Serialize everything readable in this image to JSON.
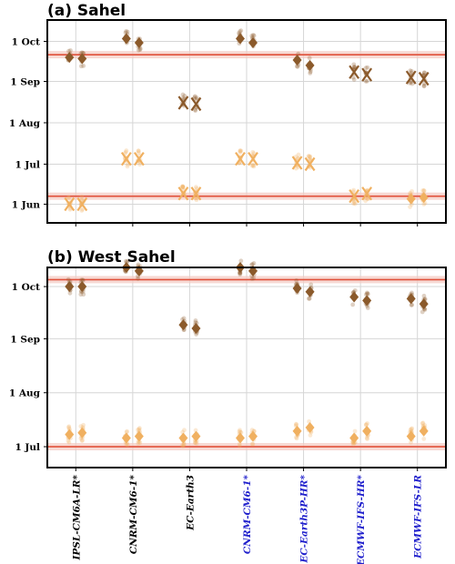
{
  "chart_data": [
    {
      "type": "scatter",
      "title": "(a) Sahel",
      "y_ticks": [
        "1 Oct",
        "1 Sep",
        "1 Aug",
        "1 Jul",
        "1 Jun"
      ],
      "y_tick_days": [
        274,
        244,
        213,
        182,
        152
      ],
      "y_range_days": [
        138,
        290
      ],
      "reference_lines_days": [
        264,
        158
      ],
      "categories": [
        "IPSL-CM6A-LR*",
        "CNRM-CM6-1*",
        "EC-Earth3",
        "CNRM-CM6-1*",
        "EC-Earth3P-HR*",
        "ECMWF-IFS-HR*",
        "ECMWF-IFS-LR"
      ],
      "category_colors": [
        "#000000",
        "#000000",
        "#000000",
        "#2020cc",
        "#2020cc",
        "#2020cc",
        "#2020cc"
      ],
      "series": [
        {
          "name": "",
          "color": "#8b5a2b",
          "marker_left": [
            "D",
            "D",
            "X",
            "D",
            "D",
            "X",
            "X"
          ],
          "marker_right": [
            "D",
            "D",
            "X",
            "D",
            "D",
            "X",
            "X"
          ],
          "values_left": [
            262,
            276,
            228,
            276,
            260,
            251,
            247
          ],
          "values_right": [
            261,
            273,
            227,
            273,
            256,
            249,
            246
          ]
        },
        {
          "name": "",
          "color": "#f0b060",
          "marker_left": [
            "X",
            "X",
            "X",
            "X",
            "X",
            "X",
            "D"
          ],
          "marker_right": [
            "X",
            "X",
            "X",
            "X",
            "X",
            "X",
            "D"
          ],
          "values_left": [
            152,
            186,
            160,
            186,
            183,
            158,
            156
          ],
          "values_right": [
            152,
            186,
            160,
            186,
            182,
            160,
            157
          ]
        }
      ]
    },
    {
      "type": "scatter",
      "title": "(b) West Sahel",
      "y_ticks": [
        "1 Oct",
        "1 Sep",
        "1 Aug",
        "1 Jul"
      ],
      "y_tick_days": [
        274,
        244,
        213,
        182
      ],
      "y_range_days": [
        170,
        285
      ],
      "reference_lines_days": [
        278,
        182
      ],
      "categories": [
        "IPSL-CM6A-LR*",
        "CNRM-CM6-1*",
        "EC-Earth3",
        "CNRM-CM6-1*",
        "EC-Earth3P-HR*",
        "ECMWF-IFS-HR*",
        "ECMWF-IFS-LR"
      ],
      "category_colors": [
        "#000000",
        "#000000",
        "#000000",
        "#2020cc",
        "#2020cc",
        "#2020cc",
        "#2020cc"
      ],
      "series": [
        {
          "name": "",
          "color": "#8b5a2b",
          "marker_left": [
            "D",
            "D",
            "D",
            "D",
            "D",
            "D",
            "D"
          ],
          "marker_right": [
            "D",
            "D",
            "D",
            "D",
            "D",
            "D",
            "D"
          ],
          "values_left": [
            274,
            285,
            252,
            285,
            273,
            268,
            267
          ],
          "values_right": [
            274,
            283,
            250,
            283,
            271,
            266,
            264
          ]
        },
        {
          "name": "",
          "color": "#f0b060",
          "marker_left": [
            "D",
            "D",
            "D",
            "D",
            "D",
            "D",
            "D"
          ],
          "marker_right": [
            "D",
            "D",
            "D",
            "D",
            "D",
            "D",
            "D"
          ],
          "values_left": [
            189,
            187,
            187,
            187,
            191,
            187,
            188
          ],
          "values_right": [
            190,
            188,
            188,
            188,
            193,
            191,
            191
          ]
        }
      ]
    }
  ]
}
